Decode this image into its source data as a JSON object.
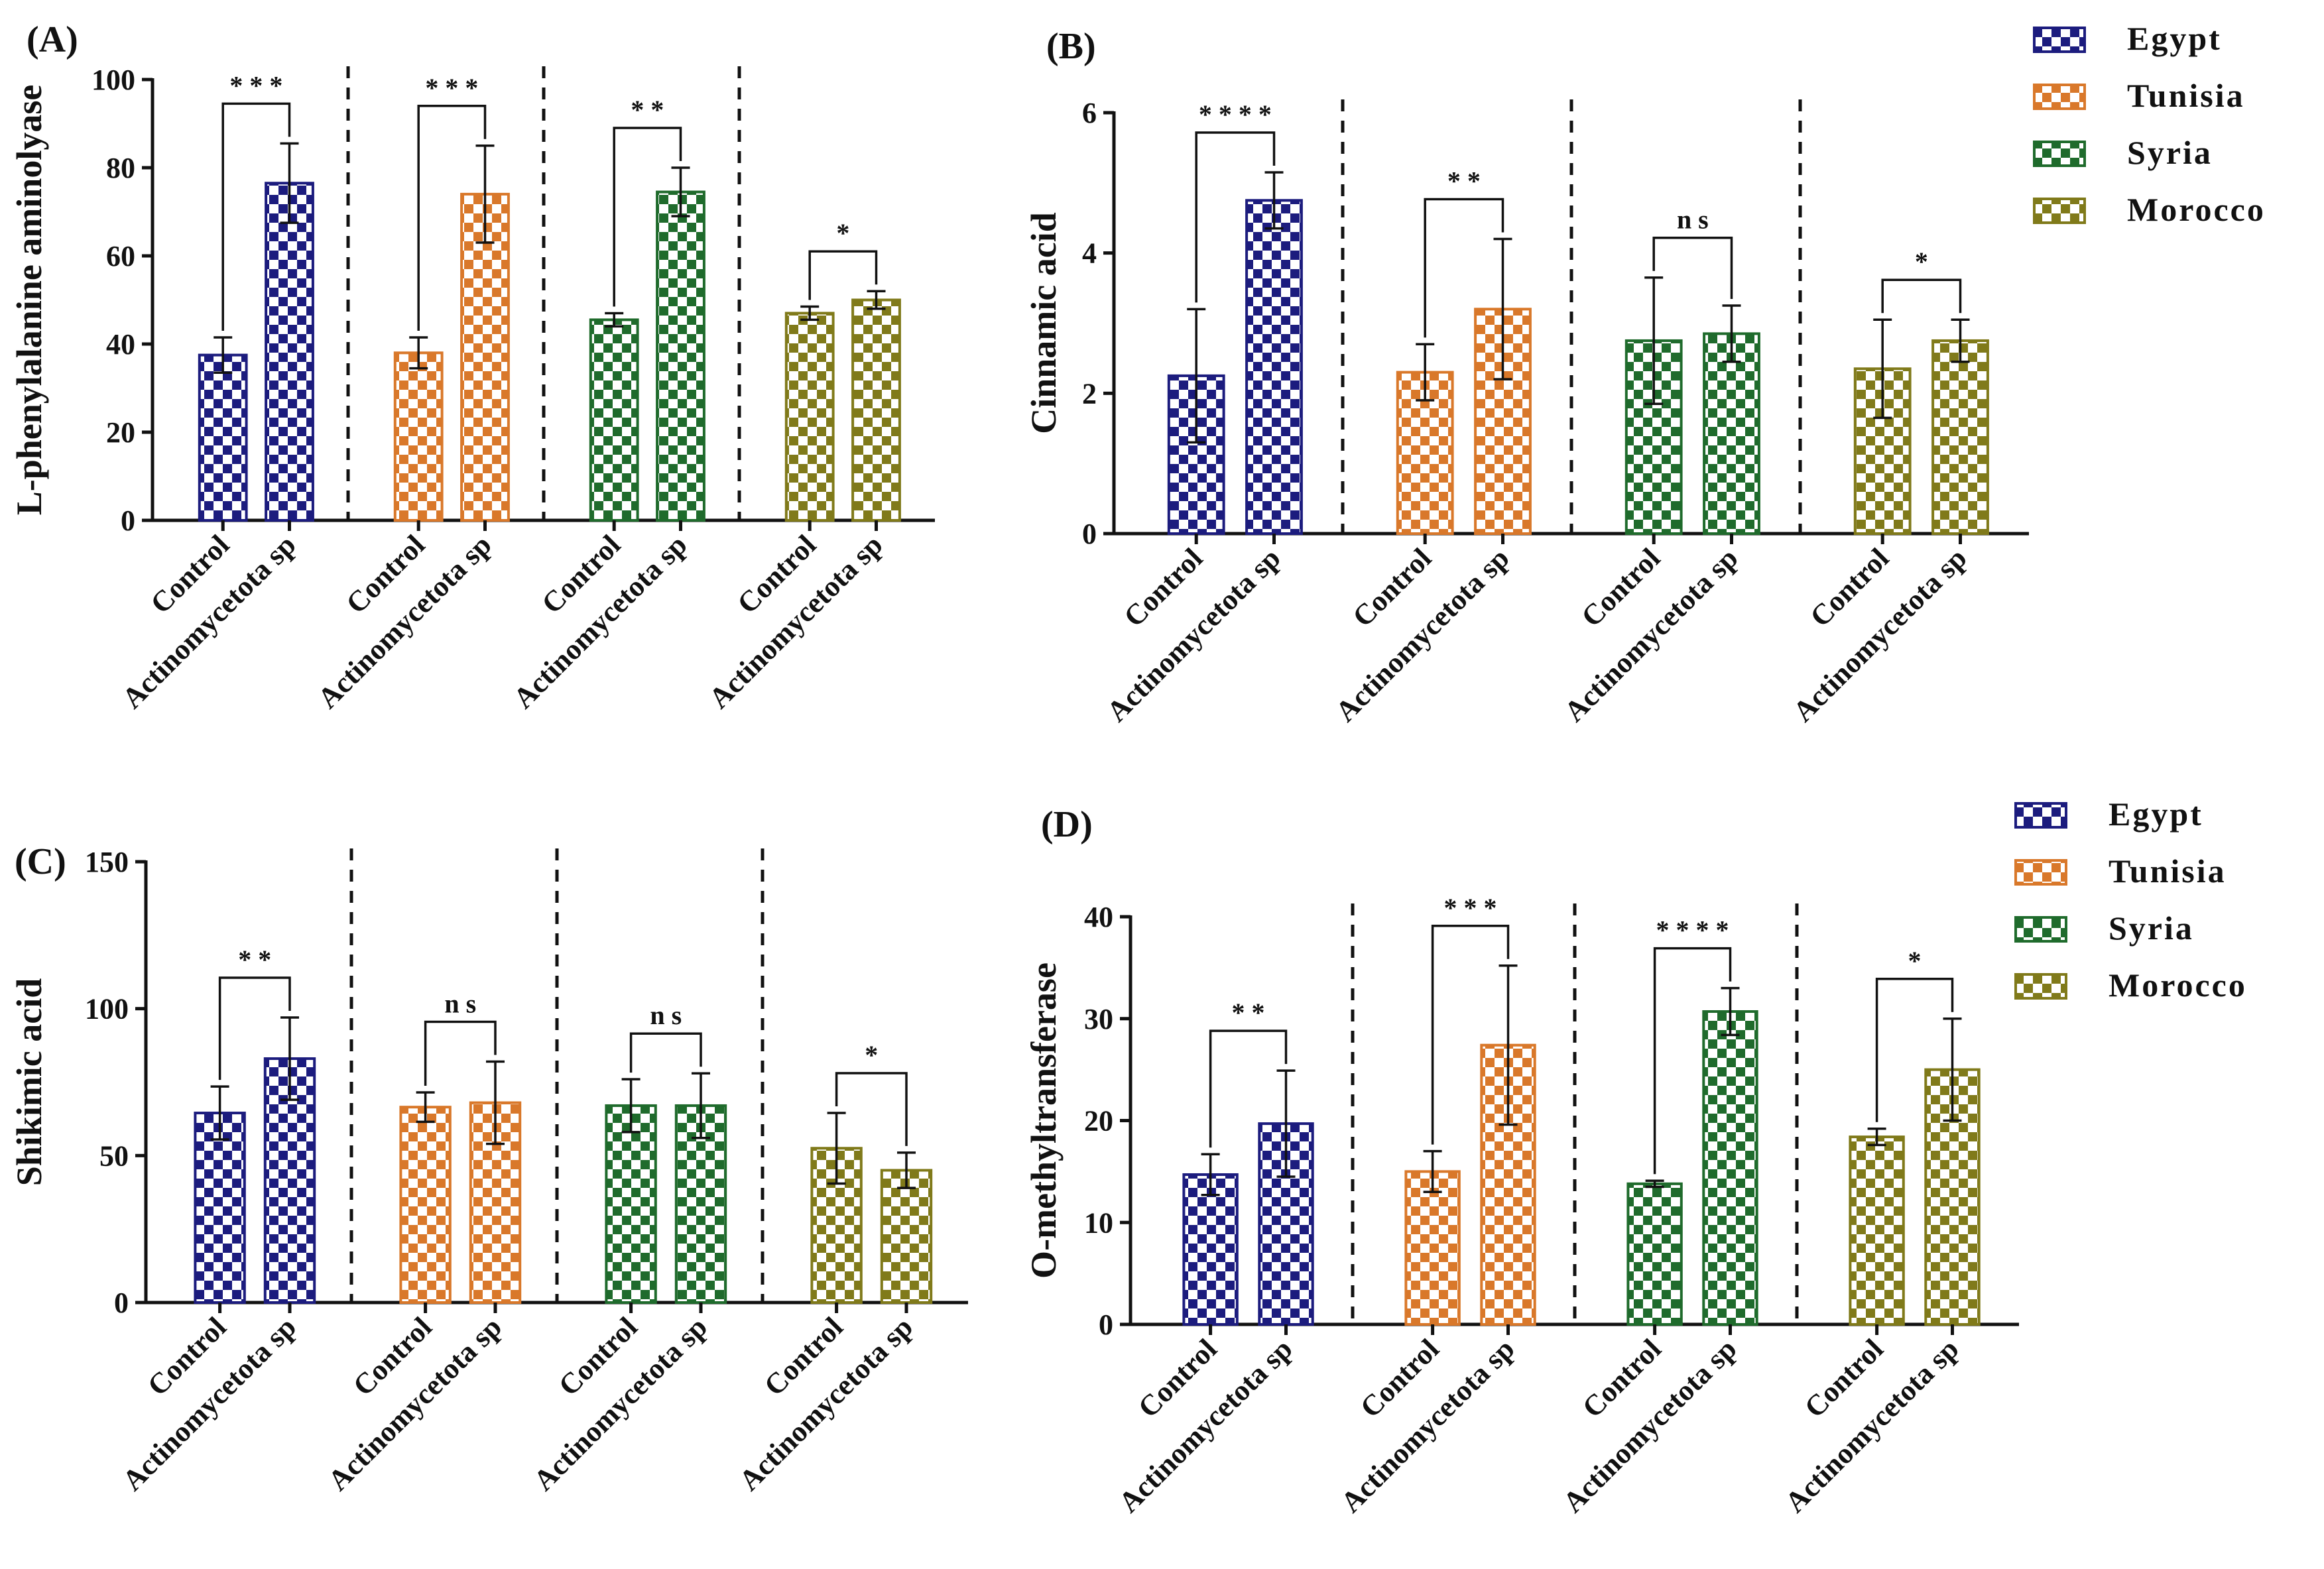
{
  "chart_data": [
    {
      "type": "bar",
      "panel_label": "(A)",
      "ylabel": "L-phenylalanine aminolyase",
      "ylim": [
        0,
        100
      ],
      "yticks": [
        0,
        20,
        40,
        60,
        80,
        100
      ],
      "categories": [
        "Control",
        "Actinomycetota sp"
      ],
      "series": [
        {
          "name": "Egypt",
          "values": [
            37.5,
            76.5
          ],
          "errors": [
            4,
            9
          ],
          "significance": "***"
        },
        {
          "name": "Tunisia",
          "values": [
            38,
            74
          ],
          "errors": [
            3.5,
            11
          ],
          "significance": "***"
        },
        {
          "name": "Syria",
          "values": [
            45.5,
            74.5
          ],
          "errors": [
            1.5,
            5.5
          ],
          "significance": "**"
        },
        {
          "name": "Morocco",
          "values": [
            47,
            50
          ],
          "errors": [
            1.5,
            2
          ],
          "significance": "*"
        }
      ]
    },
    {
      "type": "bar",
      "panel_label": "(B)",
      "ylabel": "Cinnamic acid",
      "ylim": [
        0,
        6
      ],
      "yticks": [
        0,
        2,
        4,
        6
      ],
      "categories": [
        "Control",
        "Actinomycetota sp"
      ],
      "series": [
        {
          "name": "Egypt",
          "values": [
            2.25,
            4.75
          ],
          "errors": [
            0.95,
            0.4
          ],
          "significance": "****"
        },
        {
          "name": "Tunisia",
          "values": [
            2.3,
            3.2
          ],
          "errors": [
            0.4,
            1.0
          ],
          "significance": "**"
        },
        {
          "name": "Syria",
          "values": [
            2.75,
            2.85
          ],
          "errors": [
            0.9,
            0.4
          ],
          "significance": "ns"
        },
        {
          "name": "Morocco",
          "values": [
            2.35,
            2.75
          ],
          "errors": [
            0.7,
            0.3
          ],
          "significance": "*"
        }
      ]
    },
    {
      "type": "bar",
      "panel_label": "(C)",
      "ylabel": "Shikimic acid",
      "ylim": [
        0,
        150
      ],
      "yticks": [
        0,
        50,
        100,
        150
      ],
      "categories": [
        "Control",
        "Actinomycetota sp"
      ],
      "series": [
        {
          "name": "Egypt",
          "values": [
            64.5,
            83
          ],
          "errors": [
            9,
            14
          ],
          "significance": "**"
        },
        {
          "name": "Tunisia",
          "values": [
            66.5,
            68
          ],
          "errors": [
            5,
            14
          ],
          "significance": "ns"
        },
        {
          "name": "Syria",
          "values": [
            67,
            67
          ],
          "errors": [
            9,
            11
          ],
          "significance": "ns"
        },
        {
          "name": "Morocco",
          "values": [
            52.5,
            45
          ],
          "errors": [
            12,
            6
          ],
          "significance": "*"
        }
      ]
    },
    {
      "type": "bar",
      "panel_label": "(D)",
      "ylabel": "O-methyltransferase",
      "ylim": [
        0,
        40
      ],
      "yticks": [
        0,
        10,
        20,
        30,
        40
      ],
      "categories": [
        "Control",
        "Actinomycetota sp"
      ],
      "series": [
        {
          "name": "Egypt",
          "values": [
            14.7,
            19.7
          ],
          "errors": [
            2,
            5.2
          ],
          "significance": "**"
        },
        {
          "name": "Tunisia",
          "values": [
            15,
            27.4
          ],
          "errors": [
            2,
            7.8
          ],
          "significance": "***"
        },
        {
          "name": "Syria",
          "values": [
            13.8,
            30.7
          ],
          "errors": [
            0.3,
            2.3
          ],
          "significance": "****"
        },
        {
          "name": "Morocco",
          "values": [
            18.4,
            25
          ],
          "errors": [
            0.8,
            5
          ],
          "significance": "*"
        }
      ]
    }
  ],
  "legend": {
    "placement": "right",
    "entries": [
      "Egypt",
      "Tunisia",
      "Syria",
      "Morocco"
    ]
  },
  "colors": {
    "Egypt": "#1c1c7e",
    "Tunisia": "#d9782a",
    "Syria": "#1f6b2c",
    "Morocco": "#807a1a"
  }
}
